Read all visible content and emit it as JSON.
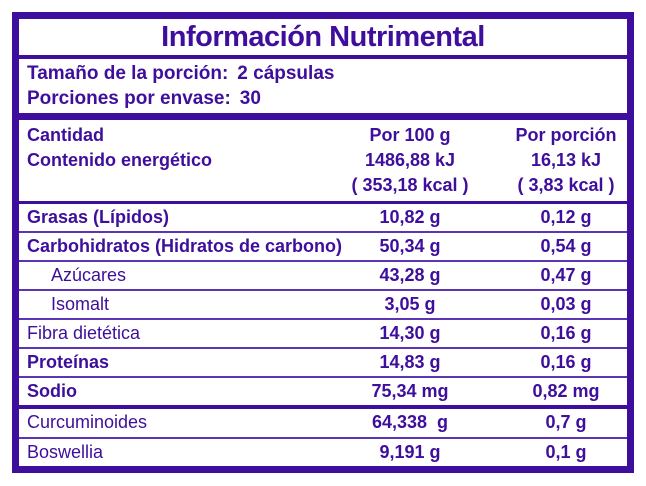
{
  "title": "Información Nutrimental",
  "serving": {
    "size_label": "Tamaño de la porción:",
    "size_value": "2 cápsulas",
    "per_container_label": "Porciones por envase:",
    "per_container_value": "30"
  },
  "header": {
    "amount_label": "Cantidad",
    "energy_label": "Contenido energético",
    "per_100g": {
      "label": "Por 100 g",
      "energy_kj": "1486,88 kJ",
      "energy_kcal": "( 353,18 kcal )"
    },
    "per_serving": {
      "label": "Por porción",
      "energy_kj": "16,13 kJ",
      "energy_kcal": "( 3,83 kcal )"
    }
  },
  "rows": [
    {
      "name": "Grasas (Lípidos)",
      "per_100g": "10,82 g",
      "per_serving": "0,12 g",
      "bold": true,
      "indent": false
    },
    {
      "name": "Carbohidratos (Hidratos de carbono)",
      "per_100g": "50,34 g",
      "per_serving": "0,54 g",
      "bold": true,
      "indent": false
    },
    {
      "name": "Azúcares",
      "per_100g": "43,28 g",
      "per_serving": "0,47 g",
      "bold": false,
      "indent": true
    },
    {
      "name": "Isomalt",
      "per_100g": "3,05 g",
      "per_serving": "0,03 g",
      "bold": false,
      "indent": true
    },
    {
      "name": "Fibra dietética",
      "per_100g": "14,30 g",
      "per_serving": "0,16 g",
      "bold": false,
      "indent": false
    },
    {
      "name": "Proteínas",
      "per_100g": "14,83 g",
      "per_serving": "0,16 g",
      "bold": true,
      "indent": false
    },
    {
      "name": "Sodio",
      "per_100g": "75,34 mg",
      "per_serving": "0,82 mg",
      "bold": true,
      "indent": false
    }
  ],
  "supplement_rows": [
    {
      "name": "Curcuminoides",
      "per_100g": "64,338  g",
      "per_serving": "0,7 g",
      "bold": false,
      "indent": false
    },
    {
      "name": "Boswellia",
      "per_100g": "9,191 g",
      "per_serving": "0,1 g",
      "bold": false,
      "indent": false
    }
  ],
  "colors": {
    "primary": "#3E0E9C",
    "divider": "#5B35B5"
  }
}
